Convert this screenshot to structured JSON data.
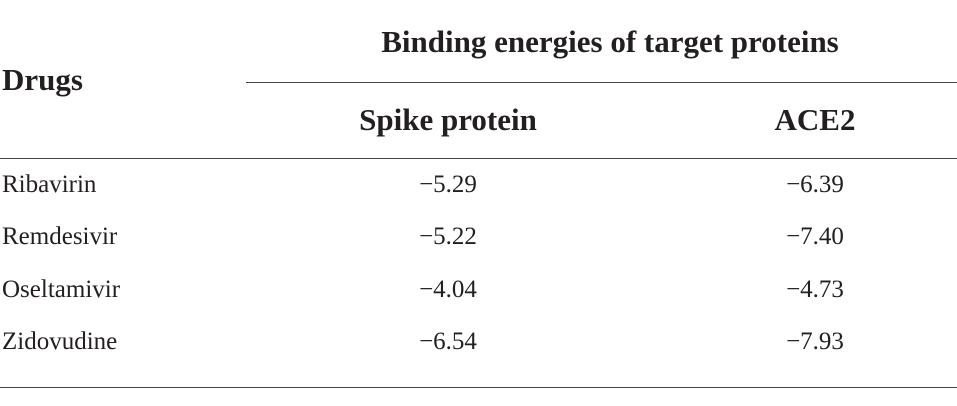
{
  "table": {
    "header": {
      "drugs": "Drugs",
      "group": "Binding energies of target proteins",
      "columns": [
        "Spike protein",
        "ACE2"
      ]
    },
    "rows": [
      [
        "Ribavirin",
        "−5.29",
        "−6.39"
      ],
      [
        "Remdesivir",
        "−5.22",
        "−7.40"
      ],
      [
        "Oseltamivir",
        "−4.04",
        "−4.73"
      ],
      [
        "Zidovudine",
        "−6.54",
        "−7.93"
      ]
    ]
  }
}
